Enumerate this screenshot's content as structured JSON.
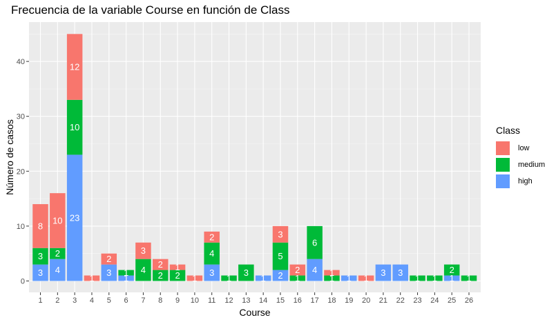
{
  "chart_data": {
    "type": "bar",
    "stacked": true,
    "title": "Frecuencia de la variable Course en función de Class",
    "xlabel": "Course",
    "ylabel": "Número de casos",
    "ylim": [
      0,
      48
    ],
    "yticks": [
      0,
      10,
      20,
      30,
      40
    ],
    "grid": true,
    "legend_position": "right",
    "legend_title": "Class",
    "categories": [
      "1",
      "2",
      "3",
      "4",
      "5",
      "6",
      "7",
      "8",
      "9",
      "10",
      "11",
      "12",
      "13",
      "14",
      "15",
      "16",
      "17",
      "18",
      "19",
      "20",
      "21",
      "22",
      "23",
      "24",
      "25",
      "26"
    ],
    "series": [
      {
        "name": "low",
        "color": "#F8766D",
        "values": [
          8,
          10,
          12,
          1,
          2,
          0,
          3,
          2,
          1,
          1,
          2,
          0,
          0,
          0,
          3,
          2,
          0,
          1,
          0,
          1,
          0,
          0,
          0,
          0,
          0,
          0
        ]
      },
      {
        "name": "medium",
        "color": "#00BA38",
        "values": [
          3,
          2,
          10,
          0,
          0,
          1,
          4,
          2,
          2,
          0,
          4,
          1,
          3,
          0,
          5,
          1,
          6,
          1,
          0,
          0,
          0,
          0,
          1,
          1,
          2,
          1
        ]
      },
      {
        "name": "high",
        "color": "#619CFF",
        "values": [
          3,
          4,
          23,
          0,
          3,
          1,
          0,
          0,
          0,
          0,
          3,
          0,
          0,
          1,
          2,
          0,
          4,
          0,
          1,
          0,
          3,
          3,
          0,
          0,
          1,
          0
        ]
      }
    ]
  }
}
